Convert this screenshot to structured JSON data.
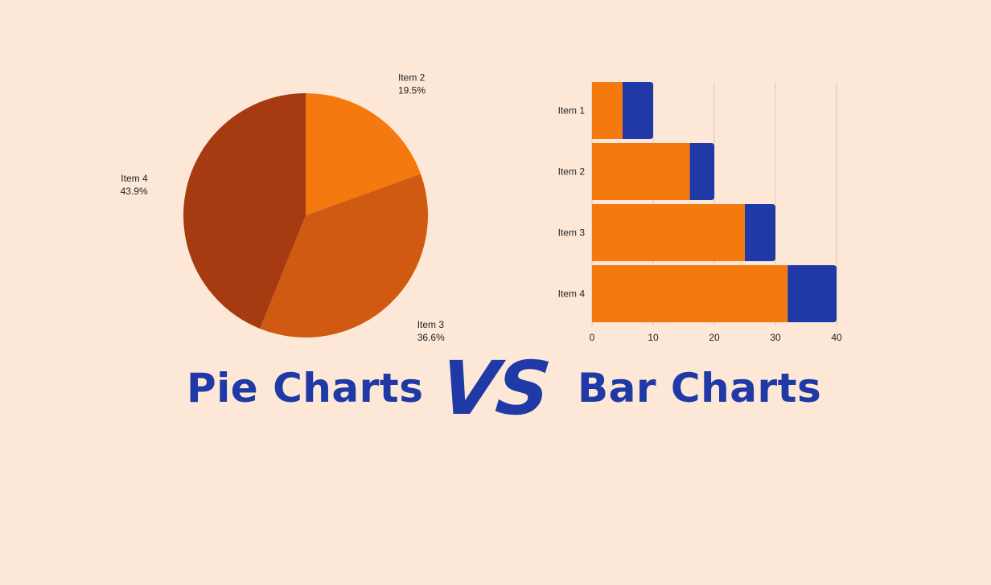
{
  "colors": {
    "background": "#fde8d8",
    "accent": "#1f3aa6",
    "orange": "#f47a10",
    "mid_orange": "#d05a12",
    "dark_orange": "#a63a10",
    "grid": "#d9c8bc"
  },
  "headings": {
    "pie": "Pie Charts",
    "vs": "VS",
    "bar": "Bar Charts"
  },
  "chart_data": [
    {
      "type": "pie",
      "slices": [
        {
          "label": "Item 2",
          "value": 19.5,
          "pct_label": "19.5%",
          "color": "#f47a10"
        },
        {
          "label": "Item 3",
          "value": 36.6,
          "pct_label": "36.6%",
          "color": "#d05a12"
        },
        {
          "label": "Item 4",
          "value": 43.9,
          "pct_label": "43.9%",
          "color": "#a63a10"
        }
      ]
    },
    {
      "type": "bar",
      "orientation": "horizontal",
      "stacked": true,
      "categories": [
        "Item 1",
        "Item 2",
        "Item 3",
        "Item 4"
      ],
      "series": [
        {
          "values": [
            5,
            16,
            25,
            32
          ],
          "color": "#f47a10"
        },
        {
          "values": [
            5,
            4,
            5,
            8
          ],
          "color": "#1f3aa6"
        }
      ],
      "xlim": [
        0,
        40
      ],
      "xticks": [
        0,
        10,
        20,
        30,
        40
      ],
      "grid": true
    }
  ]
}
